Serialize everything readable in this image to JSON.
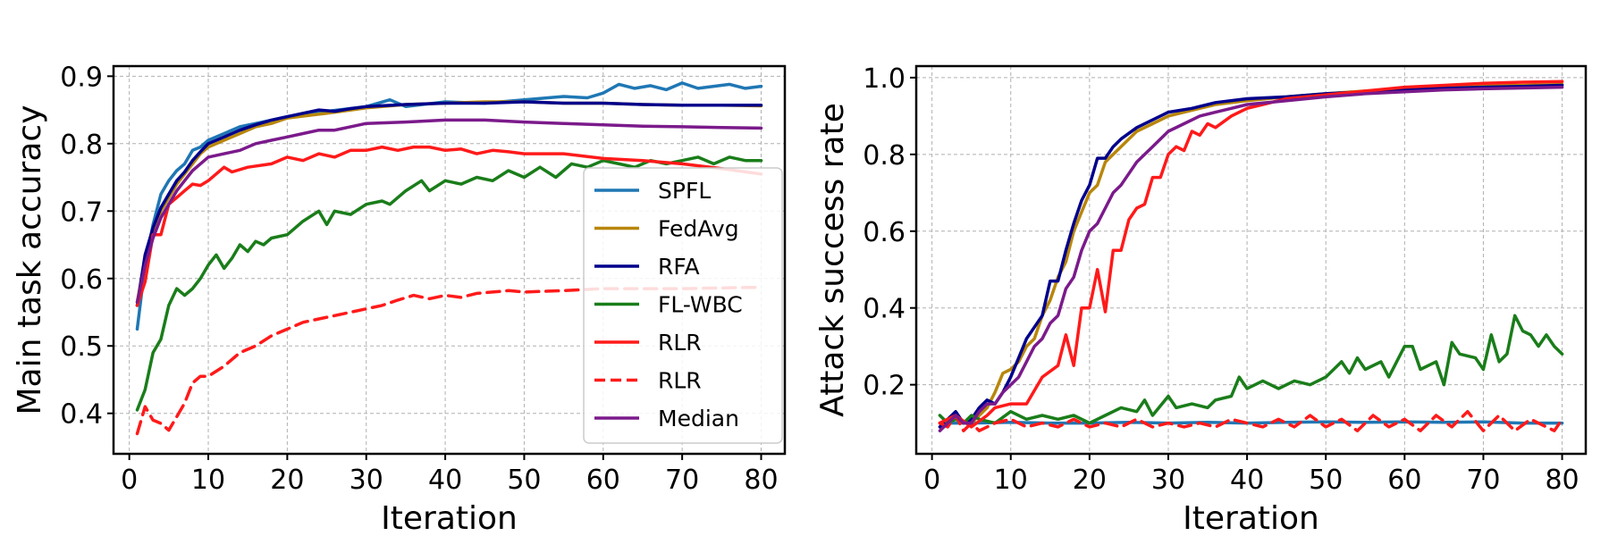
{
  "chart_data": [
    {
      "type": "line",
      "ylabel": "Main task accuracy",
      "xlabel": "Iteration",
      "xlim": [
        -2,
        83
      ],
      "ylim": [
        0.34,
        0.915
      ],
      "xticks": [
        0,
        10,
        20,
        30,
        40,
        50,
        60,
        70,
        80
      ],
      "yticks": [
        0.4,
        0.5,
        0.6,
        0.7,
        0.8,
        0.9
      ],
      "grid": true,
      "legend_position": "lower-right",
      "series": [
        {
          "name": "SPFL",
          "color": "#1f77b4",
          "dash": "solid",
          "key": "[[1,0.525],[2,0.62],[3,0.68],[4,0.725],[5,0.745],[6,0.76],[7,0.77],[8,0.79],[9,0.795],[10,0.805],[12,0.815],[14,0.825],[16,0.83],[18,0.835],[20,0.84],[25,0.848],[30,0.855],[33,0.865],[35,0.855],[40,0.862],[45,0.86],[50,0.865],[55,0.87],[58,0.868],[60,0.875],[62,0.888],[64,0.882],[66,0.886],[68,0.88],[70,0.89],[72,0.882],[74,0.885],[76,0.888],[78,0.882],[80,0.885]]"
        },
        {
          "name": "FedAvg",
          "color": "#b8860b",
          "dash": "solid",
          "key": "[[1,0.565],[2,0.63],[3,0.67],[4,0.7],[5,0.72],[6,0.74],[7,0.755],[8,0.77],[9,0.785],[10,0.795],[12,0.805],[14,0.815],[16,0.825],[18,0.83],[20,0.838],[25,0.845],[30,0.853],[35,0.858],[40,0.86],[45,0.862],[50,0.862],[55,0.86],[60,0.86],[65,0.858],[70,0.857],[75,0.857],[80,0.856]]"
        },
        {
          "name": "RFA",
          "color": "#00008b",
          "dash": "solid",
          "key": "[[1,0.56],[2,0.635],[3,0.675],[4,0.705],[5,0.725],[6,0.745],[7,0.758],[8,0.775],[9,0.788],[10,0.8],[12,0.81],[14,0.82],[16,0.828],[18,0.835],[20,0.84],[22,0.845],[24,0.85],[26,0.848],[28,0.852],[30,0.855],[35,0.858],[40,0.86],[45,0.86],[50,0.862],[55,0.86],[60,0.86],[65,0.858],[70,0.857],[75,0.857],[80,0.857]]"
        },
        {
          "name": "FL-WBC",
          "color": "#1a7d1a",
          "dash": "solid",
          "key": "[[1,0.405],[2,0.435],[3,0.49],[4,0.51],[5,0.56],[6,0.585],[7,0.575],[8,0.585],[9,0.6],[10,0.62],[11,0.635],[12,0.615],[13,0.63],[14,0.65],[15,0.64],[16,0.655],[17,0.65],[18,0.66],[20,0.665],[22,0.685],[24,0.7],[25,0.68],[26,0.7],[28,0.695],[30,0.71],[32,0.715],[33,0.71],[35,0.73],[37,0.745],[38,0.73],[40,0.745],[42,0.74],[44,0.75],[46,0.745],[48,0.76],[50,0.75],[52,0.765],[54,0.75],[56,0.77],[58,0.765],[60,0.775],[62,0.77],[64,0.765],[66,0.775],[68,0.77],[70,0.775],[72,0.78],[74,0.77],[76,0.78],[78,0.775],[80,0.775]]"
        },
        {
          "name": "RLR",
          "color": "#ff1a1a",
          "dash": "solid",
          "key": "[[1,0.56],[2,0.595],[3,0.665],[4,0.665],[5,0.71],[6,0.72],[7,0.73],[8,0.74],[9,0.738],[10,0.745],[12,0.765],[13,0.758],[15,0.765],[18,0.77],[20,0.78],[22,0.775],[24,0.785],[26,0.78],[28,0.79],[30,0.79],[32,0.795],[34,0.79],[36,0.795],[38,0.795],[40,0.79],[42,0.792],[44,0.785],[46,0.79],[48,0.788],[50,0.785],[55,0.785],[60,0.778],[65,0.775],[70,0.77],[75,0.763],[80,0.755]]"
        },
        {
          "name": "RLR",
          "color": "#ff1a1a",
          "dash": "dashed",
          "key": "[[1,0.37],[2,0.41],[3,0.39],[4,0.385],[5,0.375],[6,0.395],[7,0.415],[8,0.445],[9,0.455],[10,0.455],[12,0.47],[14,0.49],[16,0.5],[18,0.515],[20,0.525],[22,0.535],[24,0.54],[26,0.545],[28,0.55],[30,0.555],[32,0.56],[34,0.568],[36,0.575],[38,0.57],[40,0.575],[42,0.572],[44,0.578],[46,0.58],[48,0.582],[50,0.58],[55,0.582],[60,0.585],[65,0.585],[70,0.585],[75,0.586],[80,0.587]]"
        },
        {
          "name": "Median",
          "color": "#7b1a8b",
          "dash": "solid",
          "key": "[[1,0.565],[2,0.62],[3,0.66],[4,0.69],[5,0.71],[6,0.73],[7,0.745],[8,0.76],[9,0.77],[10,0.78],[12,0.785],[14,0.79],[16,0.8],[18,0.805],[20,0.81],[22,0.815],[24,0.82],[26,0.82],[28,0.825],[30,0.83],[35,0.832],[40,0.835],[45,0.835],[50,0.832],[55,0.83],[60,0.828],[65,0.826],[70,0.825],[75,0.824],[80,0.823]]"
        }
      ]
    },
    {
      "type": "line",
      "ylabel": "Attack success rate",
      "xlabel": "Iteration",
      "xlim": [
        -2,
        83
      ],
      "ylim": [
        0.02,
        1.03
      ],
      "xticks": [
        0,
        10,
        20,
        30,
        40,
        50,
        60,
        70,
        80
      ],
      "yticks": [
        0.2,
        0.4,
        0.6,
        0.8,
        1.0
      ],
      "grid": true,
      "legend_position": "none",
      "series": [
        {
          "name": "SPFL",
          "color": "#1f77b4",
          "dash": "solid",
          "key": "[[1,0.1],[5,0.1],[10,0.102],[15,0.1],[20,0.1],[25,0.102],[30,0.1],[35,0.102],[40,0.1],[45,0.102],[50,0.103],[55,0.102],[60,0.103],[65,0.102],[70,0.103],[75,0.1],[80,0.1]]"
        },
        {
          "name": "FedAvg",
          "color": "#b8860b",
          "dash": "solid",
          "key": "[[1,0.1],[2,0.11],[3,0.12],[4,0.1],[5,0.1],[6,0.12],[7,0.14],[8,0.18],[9,0.23],[10,0.24],[11,0.26],[12,0.3],[13,0.32],[14,0.38],[15,0.42],[16,0.48],[17,0.52],[18,0.6],[19,0.65],[20,0.7],[21,0.72],[22,0.78],[24,0.82],[26,0.86],[28,0.88],[30,0.9],[33,0.915],[36,0.93],[40,0.94],[45,0.95],[50,0.958],[55,0.965],[60,0.97],[65,0.975],[70,0.978],[75,0.98],[80,0.982]]"
        },
        {
          "name": "RFA",
          "color": "#00008b",
          "dash": "solid",
          "key": "[[1,0.09],[2,0.11],[3,0.13],[4,0.1],[5,0.11],[6,0.14],[7,0.16],[8,0.15],[9,0.18],[10,0.22],[11,0.27],[12,0.32],[13,0.35],[14,0.38],[15,0.47],[16,0.47],[17,0.55],[18,0.62],[19,0.68],[20,0.72],[21,0.79],[22,0.79],[23,0.82],[24,0.84],[26,0.87],[28,0.89],[30,0.91],[33,0.92],[36,0.935],[40,0.945],[45,0.95],[50,0.958],[55,0.963],[60,0.968],[65,0.972],[70,0.975],[75,0.977],[80,0.98]]"
        },
        {
          "name": "FL-WBC",
          "color": "#1a7d1a",
          "dash": "solid",
          "key": "[[1,0.12],[2,0.1],[3,0.11],[4,0.1],[5,0.12],[6,0.11],[8,0.1],[10,0.13],[12,0.11],[14,0.12],[16,0.11],[18,0.12],[20,0.1],[22,0.12],[24,0.14],[26,0.13],[27,0.16],[28,0.12],[30,0.17],[31,0.14],[33,0.15],[35,0.14],[36,0.16],[38,0.17],[39,0.22],[40,0.19],[42,0.21],[44,0.19],[46,0.21],[48,0.2],[50,0.22],[52,0.26],[53,0.23],[54,0.27],[55,0.24],[57,0.26],[58,0.22],[60,0.3],[61,0.3],[62,0.24],[64,0.26],[65,0.2],[66,0.31],[67,0.28],[69,0.27],[70,0.24],[71,0.33],[72,0.26],[73,0.28],[74,0.38],[75,0.34],[76,0.33],[77,0.3],[78,0.33],[79,0.3],[80,0.28]]"
        },
        {
          "name": "RLR",
          "color": "#ff1a1a",
          "dash": "solid",
          "key": "[[1,0.1],[3,0.12],[5,0.09],[7,0.12],[8,0.14],[10,0.15],[12,0.15],[14,0.22],[16,0.25],[17,0.33],[18,0.25],[19,0.4],[20,0.4],[21,0.5],[22,0.39],[23,0.55],[24,0.55],[25,0.63],[26,0.66],[27,0.67],[28,0.74],[29,0.74],[30,0.8],[31,0.82],[32,0.81],[33,0.86],[34,0.85],[35,0.88],[36,0.87],[38,0.9],[40,0.92],[42,0.93],[45,0.945],[50,0.955],[55,0.965],[60,0.975],[65,0.98],[70,0.985],[75,0.988],[80,0.99]]"
        },
        {
          "name": "RLR",
          "color": "#ff1a1a",
          "dash": "dashed",
          "key": "[[1,0.1],[2,0.09],[3,0.12],[4,0.08],[5,0.1],[6,0.08],[8,0.1],[10,0.11],[12,0.09],[14,0.1],[16,0.09],[18,0.11],[20,0.09],[22,0.1],[24,0.09],[26,0.11],[28,0.09],[30,0.1],[32,0.09],[34,0.1],[36,0.09],[38,0.11],[40,0.1],[42,0.09],[44,0.11],[46,0.09],[48,0.12],[50,0.09],[52,0.11],[54,0.08],[56,0.12],[58,0.09],[60,0.11],[62,0.08],[64,0.12],[66,0.09],[68,0.13],[70,0.08],[72,0.12],[74,0.08],[76,0.11],[78,0.09],[79,0.08],[80,0.11]]"
        },
        {
          "name": "Median",
          "color": "#7b1a8b",
          "dash": "solid",
          "key": "[[1,0.08],[2,0.1],[3,0.12],[4,0.1],[5,0.1],[6,0.13],[7,0.15],[8,0.15],[9,0.18],[10,0.2],[11,0.22],[12,0.26],[13,0.3],[14,0.32],[15,0.36],[16,0.38],[17,0.45],[18,0.48],[19,0.55],[20,0.6],[21,0.62],[22,0.66],[23,0.7],[24,0.72],[25,0.75],[26,0.78],[28,0.82],[30,0.86],[32,0.88],[34,0.9],[36,0.91],[38,0.92],[40,0.93],[45,0.94],[50,0.95],[55,0.958],[60,0.963],[65,0.968],[70,0.971],[75,0.973],[80,0.975]]"
        }
      ]
    }
  ]
}
